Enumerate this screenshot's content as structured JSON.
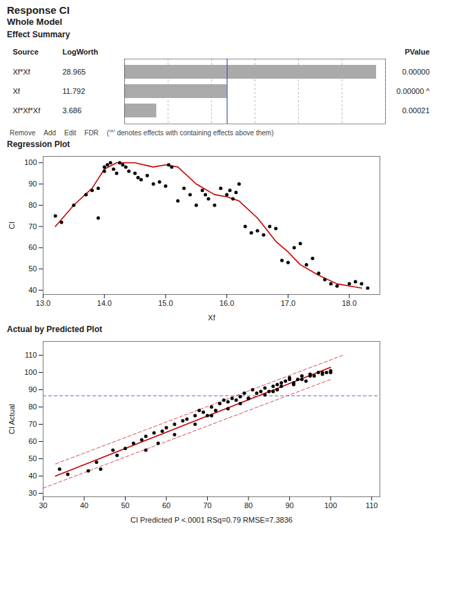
{
  "title": "Response CI",
  "subtitle": "Whole Model",
  "chart_data": [
    {
      "type": "bar",
      "title": "Effect Summary",
      "orientation": "horizontal",
      "categories": [
        "Xf*Xf",
        "Xf",
        "Xf*Xf*Xf"
      ],
      "values": [
        28.965,
        11.792,
        3.686
      ],
      "color": "#aaaaaa",
      "data_labels": true,
      "ylabel": "Source",
      "xlabel": "LogWorth",
      "pvalue_label": "PValue",
      "pvalues": [
        "0.00000",
        "0.00000 ^",
        "0.00021"
      ],
      "xlim": [
        0,
        30
      ],
      "xticks": [
        0,
        5,
        10,
        15,
        20,
        25,
        30
      ],
      "grid": true,
      "tick_labels": "y",
      "reference_line": {
        "value": 11.792,
        "color": "#4455aa"
      },
      "annotations": [
        "Remove",
        "Add",
        "Edit",
        "FDR",
        "('^' denotes effects with containing effects above them)"
      ]
    },
    {
      "type": "scatter",
      "title": "Regression Plot",
      "xlabel": "Xf",
      "ylabel": "CI",
      "xlim": [
        13,
        18.5
      ],
      "xticks": [
        13,
        14,
        15,
        16,
        17,
        18
      ],
      "ylim": [
        38,
        103
      ],
      "yticks": [
        40,
        50,
        60,
        70,
        80,
        90,
        100
      ],
      "grid": false,
      "series": [
        {
          "type": "scatter",
          "color": "#000000",
          "marker": "circle",
          "x": [
            13.2,
            13.3,
            13.5,
            13.7,
            13.8,
            13.9,
            13.9,
            14.0,
            14.0,
            14.05,
            14.1,
            14.15,
            14.2,
            14.25,
            14.3,
            14.35,
            14.4,
            14.5,
            14.55,
            14.6,
            14.7,
            14.8,
            14.9,
            15.0,
            15.05,
            15.1,
            15.2,
            15.3,
            15.4,
            15.5,
            15.6,
            15.65,
            15.7,
            15.8,
            15.9,
            16.0,
            16.05,
            16.1,
            16.15,
            16.2,
            16.3,
            16.4,
            16.5,
            16.6,
            16.7,
            16.8,
            16.9,
            17.0,
            17.1,
            17.2,
            17.3,
            17.4,
            17.5,
            17.6,
            17.7,
            17.8,
            18.0,
            18.1,
            18.2,
            18.3
          ],
          "values": [
            75,
            72,
            80,
            85,
            87,
            88,
            74,
            98,
            96,
            99,
            100,
            97,
            95,
            100,
            99,
            98,
            96,
            95,
            93,
            92,
            94,
            90,
            91,
            89,
            99,
            98,
            82,
            88,
            85,
            80,
            87,
            85,
            83,
            80,
            88,
            85,
            87,
            83,
            86,
            90,
            70,
            67,
            68,
            66,
            70,
            69,
            54,
            53,
            60,
            62,
            52,
            55,
            48,
            45,
            43,
            42,
            43,
            44,
            43,
            41
          ]
        },
        {
          "type": "line",
          "color": "#cc0000",
          "line_style": "solid",
          "x": [
            13.2,
            13.5,
            13.8,
            14.0,
            14.2,
            14.5,
            14.8,
            15.0,
            15.2,
            15.5,
            15.8,
            16.0,
            16.2,
            16.5,
            16.8,
            17.0,
            17.2,
            17.5,
            17.8,
            18.0,
            18.2
          ],
          "values": [
            70,
            80,
            88,
            97,
            100,
            100,
            98,
            99,
            98,
            90,
            85,
            84,
            82,
            74,
            63,
            58,
            52,
            47,
            43,
            42,
            41
          ]
        }
      ]
    },
    {
      "type": "scatter",
      "title": "Actual by Predicted Plot",
      "xlabel": "CI Predicted P <.0001 RSq=0.79 RMSE=7.3836",
      "ylabel": "CI Actual",
      "xlim": [
        30,
        112
      ],
      "xticks": [
        30,
        40,
        50,
        60,
        70,
        80,
        90,
        100,
        110
      ],
      "ylim": [
        28,
        118
      ],
      "yticks": [
        30,
        40,
        50,
        60,
        70,
        80,
        90,
        100,
        110
      ],
      "grid": false,
      "series": [
        {
          "type": "scatter",
          "color": "#000000",
          "marker": "circle",
          "x": [
            34,
            36,
            41,
            43,
            44,
            47,
            48,
            50,
            52,
            54,
            55,
            57,
            59,
            60,
            62,
            64,
            65,
            67,
            68,
            69,
            70,
            71,
            72,
            73,
            74,
            75,
            76,
            77,
            78,
            79,
            80,
            81,
            82,
            83,
            84,
            85,
            86,
            87,
            87,
            88,
            89,
            90,
            90,
            91,
            92,
            93,
            94,
            95,
            96,
            97,
            98,
            99,
            100,
            55,
            58,
            62,
            67,
            71,
            75,
            78,
            80,
            84,
            86,
            88,
            91,
            93,
            95,
            98,
            100
          ],
          "values": [
            44,
            41,
            43,
            48,
            44,
            55,
            52,
            56,
            59,
            61,
            63,
            65,
            66,
            68,
            70,
            72,
            73,
            75,
            78,
            77,
            75,
            80,
            78,
            82,
            84,
            83,
            85,
            84,
            86,
            88,
            85,
            90,
            88,
            89,
            91,
            89,
            92,
            93,
            90,
            94,
            95,
            96,
            97,
            93,
            96,
            98,
            95,
            99,
            98,
            100,
            99,
            100,
            100,
            55,
            59,
            64,
            70,
            75,
            79,
            82,
            85,
            87,
            89,
            92,
            94,
            96,
            98,
            100,
            101
          ]
        },
        {
          "type": "line",
          "color": "#cc0000",
          "line_style": "dashed",
          "x": [
            30,
            100
          ],
          "values": [
            33,
            96
          ]
        },
        {
          "type": "line",
          "color": "#cc0000",
          "line_style": "dashed",
          "x": [
            33,
            103
          ],
          "values": [
            47,
            110
          ]
        },
        {
          "type": "line",
          "color": "#cc0000",
          "line_style": "solid",
          "x": [
            33,
            100
          ],
          "values": [
            40,
            103
          ]
        }
      ],
      "reference_line": {
        "value": 86.5,
        "color": "#6666bb",
        "line_style": "dashed"
      }
    }
  ]
}
